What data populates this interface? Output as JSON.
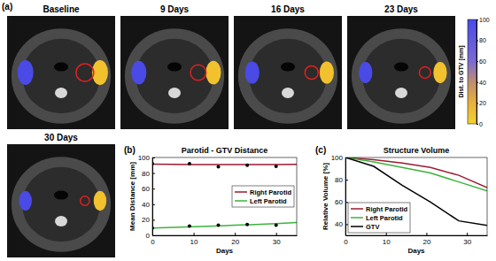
{
  "chart_data": [
    {
      "type": "image_grid",
      "label": "(a)",
      "titles": [
        "Baseline",
        "9 Days",
        "16 Days",
        "23 Days",
        "30 Days"
      ],
      "colorbar": {
        "label": "Dist. to GTV [mm]",
        "lim": [
          0,
          100
        ],
        "ticks": [
          0,
          20,
          40,
          60,
          80,
          100
        ]
      }
    },
    {
      "type": "line",
      "label": "(b)",
      "title": "Parotid - GTV Distance",
      "x_label": "Days",
      "y_label": "Mean Distance [mm]",
      "xlim": [
        0,
        35
      ],
      "xticks": [
        0,
        10,
        20,
        30
      ],
      "ylim": [
        0,
        100
      ],
      "yticks": [
        0,
        20,
        40,
        60,
        80,
        100
      ],
      "legend": "right",
      "series": [
        {
          "name": "Right Parotid",
          "color": "#9b1b30",
          "type": "line",
          "x": [
            0,
            5,
            10,
            15,
            20,
            25,
            30,
            35
          ],
          "values": [
            91.5,
            91.2,
            91,
            90.8,
            90.8,
            90.8,
            91,
            91.2
          ]
        },
        {
          "name": "Left Parotid",
          "color": "#3cb33c",
          "type": "line",
          "x": [
            0,
            5,
            10,
            15,
            20,
            25,
            30,
            35
          ],
          "values": [
            9.5,
            10.2,
            11,
            12,
            13,
            14,
            15,
            16.5
          ]
        },
        {
          "color": "#000000",
          "type": "scatter",
          "marker": "circle",
          "x": [
            0,
            9,
            16,
            23,
            30
          ],
          "values": [
            92,
            92,
            88,
            90,
            88.5
          ]
        },
        {
          "color": "#000000",
          "type": "scatter",
          "marker": "circle",
          "x": [
            0,
            9,
            16,
            23,
            30
          ],
          "values": [
            9.5,
            12,
            13,
            14,
            13
          ]
        }
      ]
    },
    {
      "type": "line",
      "label": "(c)",
      "title": "Structure Volume",
      "x_label": "Days",
      "y_label": "Relative Volume [%]",
      "xlim": [
        0,
        35
      ],
      "xticks": [
        0,
        10,
        20,
        30
      ],
      "ylim": [
        30,
        100
      ],
      "yticks": [
        40,
        60,
        80,
        100
      ],
      "legend": "lower left",
      "series": [
        {
          "name": "Right Parotid",
          "color": "#9b1b30",
          "type": "line",
          "x": [
            0,
            7,
            14,
            21,
            28,
            35
          ],
          "values": [
            100,
            98,
            95,
            91,
            84,
            73
          ]
        },
        {
          "name": "Left Parotid",
          "color": "#3cb33c",
          "type": "line",
          "x": [
            0,
            7,
            14,
            21,
            28,
            35
          ],
          "values": [
            100,
            96,
            91,
            86,
            78,
            70
          ]
        },
        {
          "name": "GTV",
          "color": "#000000",
          "type": "line",
          "x": [
            0,
            7,
            14,
            21,
            28,
            35
          ],
          "values": [
            100,
            92,
            75,
            60,
            43,
            39
          ]
        }
      ]
    }
  ]
}
